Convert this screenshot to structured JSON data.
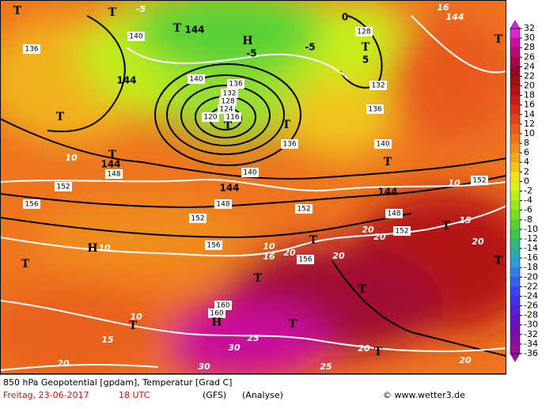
{
  "map": {
    "labels": [
      "T",
      "T",
      "-5",
      "T",
      "144",
      "H",
      "-5",
      "-5",
      "0",
      "128",
      "T",
      "5",
      "144",
      "16",
      "T",
      "136",
      "140",
      "144",
      "140",
      "136",
      "132",
      "128",
      "124",
      "120",
      "116",
      "T",
      "T",
      "132",
      "136",
      "140",
      "T",
      "T",
      "144",
      "148",
      "152",
      "156",
      "144",
      "148",
      "152",
      "156",
      "152",
      "144",
      "152",
      "148",
      "152",
      "T",
      "H",
      "10",
      "10",
      "10",
      "15",
      "20",
      "T",
      "T",
      "T",
      "T",
      "20",
      "20",
      "10",
      "16",
      "20",
      "156",
      "20",
      "T",
      "T",
      "160",
      "160",
      "H",
      "10",
      "T",
      "15",
      "T",
      "25",
      "30",
      "30",
      "20",
      "25",
      "20",
      "T",
      "20",
      "136",
      "140"
    ],
    "colorbar": {
      "ticks": [
        32,
        30,
        28,
        26,
        24,
        22,
        20,
        18,
        16,
        14,
        12,
        10,
        8,
        6,
        4,
        2,
        0,
        -2,
        -4,
        -6,
        -8,
        -10,
        -12,
        -14,
        -16,
        -18,
        -20,
        -22,
        -24,
        -26,
        -28,
        -30,
        -32,
        -34,
        -36
      ],
      "colors": [
        "#d828d8",
        "#c8109c",
        "#b40c70",
        "#a00a48",
        "#8c0a28",
        "#9c1010",
        "#b01414",
        "#c41e1e",
        "#d42e1e",
        "#e0441e",
        "#e85a1e",
        "#f0721e",
        "#f08c1e",
        "#f0a61e",
        "#f0c41e",
        "#f0e01e",
        "#d8f01e",
        "#b8ec1e",
        "#98e41e",
        "#78dc24",
        "#58d034",
        "#3cc44c",
        "#30b87c",
        "#30aaa8",
        "#309ad4",
        "#307ee4",
        "#3062f0",
        "#3444f0",
        "#4430e0",
        "#5420d0",
        "#6414c0",
        "#7410b0",
        "#8410a4",
        "#9410a0"
      ]
    },
    "footer": {
      "line1": "850 hPa Geopotential [gpdam], Temperatur [Grad C]",
      "date": "Freitag, 23-06-2017",
      "time": "18 UTC",
      "model": "(GFS)",
      "run": "(Analyse)",
      "credit": "© www.wetter3.de"
    }
  }
}
